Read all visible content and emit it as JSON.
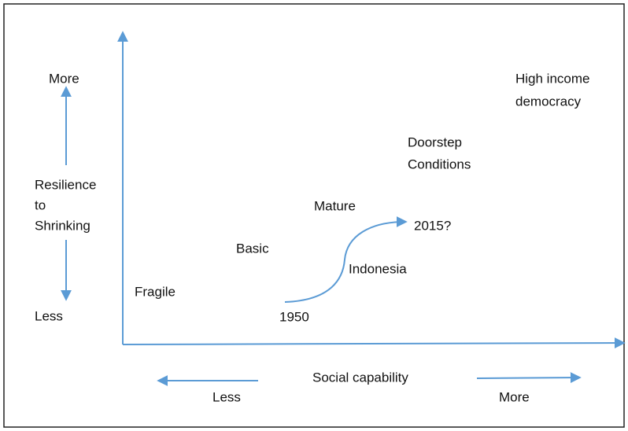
{
  "y_axis": {
    "more": "More",
    "label": [
      "Resilience",
      "to",
      "Shrinking"
    ],
    "less": "Less"
  },
  "x_axis": {
    "label": "Social capability",
    "less": "Less",
    "more": "More"
  },
  "stages": [
    {
      "lines": [
        "Fragile"
      ]
    },
    {
      "lines": [
        "Basic"
      ]
    },
    {
      "lines": [
        "Mature"
      ]
    },
    {
      "lines": [
        "Doorstep",
        "Conditions"
      ]
    },
    {
      "lines": [
        "High income",
        "democracy"
      ]
    }
  ],
  "path": {
    "start": "1950",
    "country": "Indonesia",
    "end": "2015?"
  }
}
